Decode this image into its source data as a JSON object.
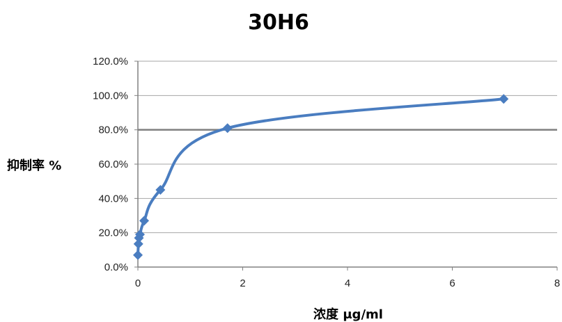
{
  "chart_data": {
    "type": "scatter",
    "title": "30H6",
    "xlabel": "浓度 μg/ml",
    "ylabel": "抑制率 %",
    "xlim": [
      0,
      8
    ],
    "ylim": [
      0,
      1.2
    ],
    "x_ticks": [
      "0",
      "2",
      "4",
      "6",
      "8"
    ],
    "y_ticks": [
      "0.0%",
      "20.0%",
      "40.0%",
      "60.0%",
      "80.0%",
      "100.0%",
      "120.0%"
    ],
    "grid": "horizontal",
    "reference_line": {
      "y": 0.8
    },
    "series": [
      {
        "points": [
          {
            "x": 0.0,
            "y": 0.07
          },
          {
            "x": 0.01,
            "y": 0.135
          },
          {
            "x": 0.02,
            "y": 0.17
          },
          {
            "x": 0.04,
            "y": 0.19
          },
          {
            "x": 0.12,
            "y": 0.27
          },
          {
            "x": 0.43,
            "y": 0.45
          },
          {
            "x": 1.71,
            "y": 0.81
          },
          {
            "x": 6.98,
            "y": 0.98
          }
        ],
        "color": "#4a7dc0"
      }
    ]
  }
}
